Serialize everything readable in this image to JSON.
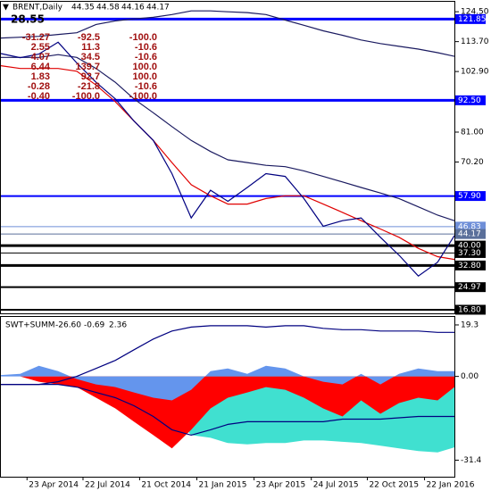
{
  "chart_data": [
    {
      "type": "line",
      "title": "BRENT,Daily",
      "ohlc": [
        "44.35",
        "44.58",
        "44.16",
        "44.17"
      ],
      "top_value": "28.55",
      "stats": [
        [
          "-31.27",
          "-92.5",
          "-100.0"
        ],
        [
          "2.55",
          "11.3",
          "-10.6"
        ],
        [
          "4.07",
          "34.5",
          "-10.6"
        ],
        [
          "6.44",
          "139.7",
          "100.0"
        ],
        [
          "1.83",
          "92.7",
          "100.0"
        ],
        [
          "-0.28",
          "-21.8",
          "-10.6"
        ],
        [
          "-0.40",
          "-100.0",
          "-100.0"
        ]
      ],
      "x": [
        "2014-03-12",
        "2014-04-12",
        "2014-05-12",
        "2014-06-12",
        "2014-07-12",
        "2014-08-12",
        "2014-09-12",
        "2014-10-12",
        "2014-11-12",
        "2014-12-12",
        "2015-01-12",
        "2015-02-12",
        "2015-03-12",
        "2015-04-12",
        "2015-05-12",
        "2015-06-12",
        "2015-07-12",
        "2015-08-12",
        "2015-09-12",
        "2015-10-12",
        "2015-11-12",
        "2015-12-12",
        "2016-01-12",
        "2016-02-12",
        "2016-03-10"
      ],
      "series": [
        {
          "color": "#1a1a60",
          "values": [
            115,
            115.3,
            115.6,
            116.3,
            116.9,
            119.9,
            121.2,
            121.9,
            122.5,
            123.5,
            124.8,
            124.8,
            124.5,
            124.2,
            123.5,
            121.5,
            119.6,
            117.6,
            116,
            114.3,
            113,
            112,
            111,
            109.7,
            108.4
          ]
        },
        {
          "color": "#1a1a60",
          "values": [
            108,
            108,
            108,
            109,
            108,
            104,
            99,
            93,
            88,
            83,
            78,
            74,
            71,
            70,
            69,
            68.5,
            67,
            65,
            63,
            61,
            59,
            57,
            54,
            51,
            49
          ]
        },
        {
          "color": "#e00000",
          "values": [
            105,
            104,
            104,
            104,
            103,
            98,
            92,
            85,
            78,
            70,
            62,
            58,
            55,
            55,
            57,
            58,
            58,
            55,
            52,
            49,
            46,
            43,
            39,
            36,
            35
          ]
        },
        {
          "color": "#000080",
          "values": [
            109.4,
            107.9,
            109.2,
            113.5,
            106,
            99,
            93,
            85,
            78,
            66,
            50,
            60,
            56,
            61,
            66,
            65,
            57,
            47,
            49,
            50,
            43,
            36.5,
            29,
            34,
            43.6
          ]
        }
      ],
      "xlim": [
        "2014-03-12",
        "2016-03-10"
      ],
      "xticks": [
        {
          "value": "2014-04-23",
          "label": "23 Apr 2014"
        },
        {
          "value": "2014-07-22",
          "label": "22 Jul 2014"
        },
        {
          "value": "2014-10-21",
          "label": "21 Oct 2014"
        },
        {
          "value": "2015-01-21",
          "label": "21 Jan 2015"
        },
        {
          "value": "2015-04-23",
          "label": "23 Apr 2015"
        },
        {
          "value": "2015-07-24",
          "label": "24 Jul 2015"
        },
        {
          "value": "2015-10-22",
          "label": "22 Oct 2015"
        },
        {
          "value": "2016-01-22",
          "label": "22 Jan 2016"
        }
      ],
      "ylim": [
        15.5,
        128.1
      ],
      "yticks": [
        {
          "value": 124.5,
          "label": "124.50"
        },
        {
          "value": 113.7,
          "label": "113.70"
        },
        {
          "value": 102.9,
          "label": "102.90"
        },
        {
          "value": 81,
          "label": "81.00"
        },
        {
          "value": 70.2,
          "label": "70.20"
        }
      ],
      "levels": [
        {
          "value": 121.85,
          "label": "121.85",
          "color": "#0000ff",
          "weight": "thick"
        },
        {
          "value": 92.5,
          "label": "92.50",
          "color": "#0000ff",
          "weight": "thick"
        },
        {
          "value": 57.9,
          "label": "57.90",
          "color": "#0000ff",
          "weight": "medium"
        },
        {
          "value": 46.83,
          "label": "46.83",
          "color": "#6f8fd8",
          "weight": "thin"
        },
        {
          "value": 44.17,
          "label": "44.17",
          "color": "#5a6f9a",
          "weight": "thin"
        },
        {
          "value": 40,
          "label": "40.00",
          "color": "#000000",
          "weight": "thick"
        },
        {
          "value": 37.3,
          "label": "37.30",
          "color": "#000000",
          "weight": "thin"
        },
        {
          "value": 32.8,
          "label": "32.80",
          "color": "#000000",
          "weight": "thick"
        },
        {
          "value": 24.97,
          "label": "24.97",
          "color": "#000000",
          "weight": "medium"
        },
        {
          "value": 16.8,
          "label": "16.80",
          "color": "#000000",
          "weight": "medium"
        }
      ]
    },
    {
      "type": "area",
      "title": "SWT+SUMM",
      "readings": [
        "-26.60",
        "-0.69",
        "2.36"
      ],
      "x": [
        "2014-03-12",
        "2014-04-12",
        "2014-05-12",
        "2014-06-12",
        "2014-07-12",
        "2014-08-12",
        "2014-09-12",
        "2014-10-12",
        "2014-11-12",
        "2014-12-12",
        "2015-01-12",
        "2015-02-12",
        "2015-03-12",
        "2015-04-12",
        "2015-05-12",
        "2015-06-12",
        "2015-07-12",
        "2015-08-12",
        "2015-09-12",
        "2015-10-12",
        "2015-11-12",
        "2015-12-12",
        "2016-01-12",
        "2016-02-12",
        "2016-03-10"
      ],
      "series": [
        {
          "type": "area",
          "color": "#40e0d0",
          "values": [
            0,
            0,
            0,
            0,
            -1,
            -3,
            -5,
            -8,
            -11,
            -14,
            -22,
            -23,
            -25,
            -25.5,
            -25,
            -25,
            -24,
            -24,
            -24.5,
            -25,
            -26,
            -27,
            -28,
            -28.5,
            -26.6
          ]
        },
        {
          "type": "area",
          "color": "#ff0000",
          "values": [
            0,
            0,
            -2,
            -3,
            -4,
            -8,
            -12,
            -17,
            -22,
            -27,
            -20,
            -12,
            -8,
            -6,
            -4,
            -5,
            -8,
            -12,
            -15,
            -9,
            -14,
            -10,
            -8,
            -9,
            -4
          ]
        },
        {
          "type": "area",
          "color": "#6495ed",
          "values": [
            0.5,
            1,
            4,
            2,
            -1,
            -3,
            -4,
            -6,
            -8,
            -9,
            -5,
            2,
            3,
            1,
            4,
            3,
            0,
            -2,
            -3,
            1,
            -3,
            1,
            3,
            2,
            2
          ]
        },
        {
          "type": "line",
          "color": "#000080",
          "values": [
            -3,
            -3,
            -3,
            -2,
            0,
            3,
            6,
            10,
            14,
            17,
            18.5,
            19,
            19,
            19,
            18.5,
            19,
            19,
            18,
            17.5,
            17.5,
            17,
            17,
            17,
            16.5,
            16.5
          ]
        },
        {
          "type": "line",
          "color": "#000080",
          "values": [
            -3,
            -3,
            -3,
            -3,
            -4,
            -6,
            -8,
            -11,
            -15,
            -20,
            -22,
            -20,
            -18,
            -17,
            -17,
            -17,
            -17,
            -17,
            -16,
            -16,
            -16,
            -15.5,
            -15,
            -15,
            -15
          ]
        }
      ],
      "ylim": [
        -37.6,
        22.3
      ],
      "yticks": [
        19.3,
        {
          "value": 0,
          "label": "0.00"
        },
        -31.4
      ]
    }
  ]
}
